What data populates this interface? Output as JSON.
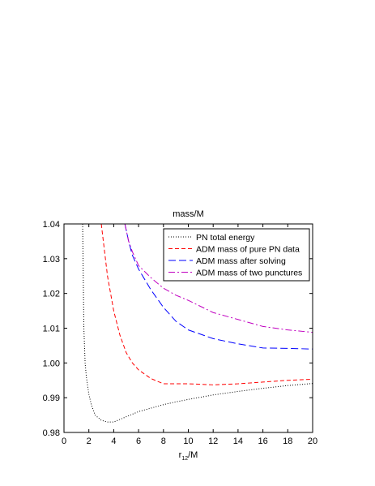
{
  "chart_data": {
    "type": "line",
    "title": "mass/M",
    "xlabel": "r",
    "xlabel_sub": "12",
    "xlabel_suffix": "/M",
    "ylabel": "",
    "xlim": [
      0,
      20
    ],
    "ylim": [
      0.98,
      1.04
    ],
    "x_ticks": [
      0,
      2,
      4,
      6,
      8,
      10,
      12,
      14,
      16,
      18,
      20
    ],
    "y_ticks": [
      0.98,
      0.99,
      1.0,
      1.01,
      1.02,
      1.03,
      1.04
    ],
    "y_tick_labels": [
      "0.98",
      "0.99",
      "1.00",
      "1.01",
      "1.02",
      "1.03",
      "1.04"
    ],
    "grid": false,
    "legend_position": "top-right",
    "series": [
      {
        "name": "PN total energy",
        "color": "#000000",
        "dash": "dotted",
        "x": [
          1.5,
          1.55,
          1.6,
          1.7,
          1.8,
          2.0,
          2.2,
          2.5,
          3.0,
          3.5,
          4.0,
          5.0,
          6.0,
          7.0,
          8.0,
          9.0,
          10.0,
          12.0,
          14.0,
          16.0,
          18.0,
          20.0
        ],
        "y": [
          1.04,
          1.025,
          1.01,
          1.0,
          0.996,
          0.991,
          0.988,
          0.985,
          0.9835,
          0.983,
          0.983,
          0.9845,
          0.986,
          0.987,
          0.988,
          0.9888,
          0.9895,
          0.9908,
          0.9918,
          0.9927,
          0.9935,
          0.9941
        ]
      },
      {
        "name": "ADM mass of pure PN data",
        "color": "#ff0000",
        "dash": "dashed",
        "x": [
          3.0,
          3.5,
          4.0,
          4.5,
          5.0,
          5.5,
          6.0,
          7.0,
          8.0,
          10.0,
          12.0,
          14.0,
          16.0,
          18.0,
          20.0
        ],
        "y": [
          1.04,
          1.025,
          1.015,
          1.008,
          1.003,
          1.0,
          0.998,
          0.9955,
          0.994,
          0.994,
          0.9937,
          0.994,
          0.9945,
          0.995,
          0.9953
        ]
      },
      {
        "name": "ADM mass after solving",
        "color": "#0000ff",
        "dash": "longdash",
        "x": [
          4.9,
          5.2,
          5.5,
          6.0,
          7.0,
          8.0,
          9.0,
          10.0,
          12.0,
          14.0,
          16.0,
          18.0,
          20.0
        ],
        "y": [
          1.04,
          1.035,
          1.031,
          1.027,
          1.021,
          1.016,
          1.012,
          1.0095,
          1.007,
          1.0055,
          1.0043,
          1.0042,
          1.004
        ]
      },
      {
        "name": "ADM mass of two punctures",
        "color": "#c000c0",
        "dash": "dashdot",
        "x": [
          4.9,
          5.2,
          5.5,
          6.0,
          7.0,
          8.0,
          9.0,
          10.0,
          12.0,
          14.0,
          16.0,
          18.0,
          20.0
        ],
        "y": [
          1.04,
          1.035,
          1.032,
          1.028,
          1.0245,
          1.0215,
          1.0195,
          1.018,
          1.0145,
          1.0125,
          1.0105,
          1.0095,
          1.0088
        ]
      }
    ]
  }
}
